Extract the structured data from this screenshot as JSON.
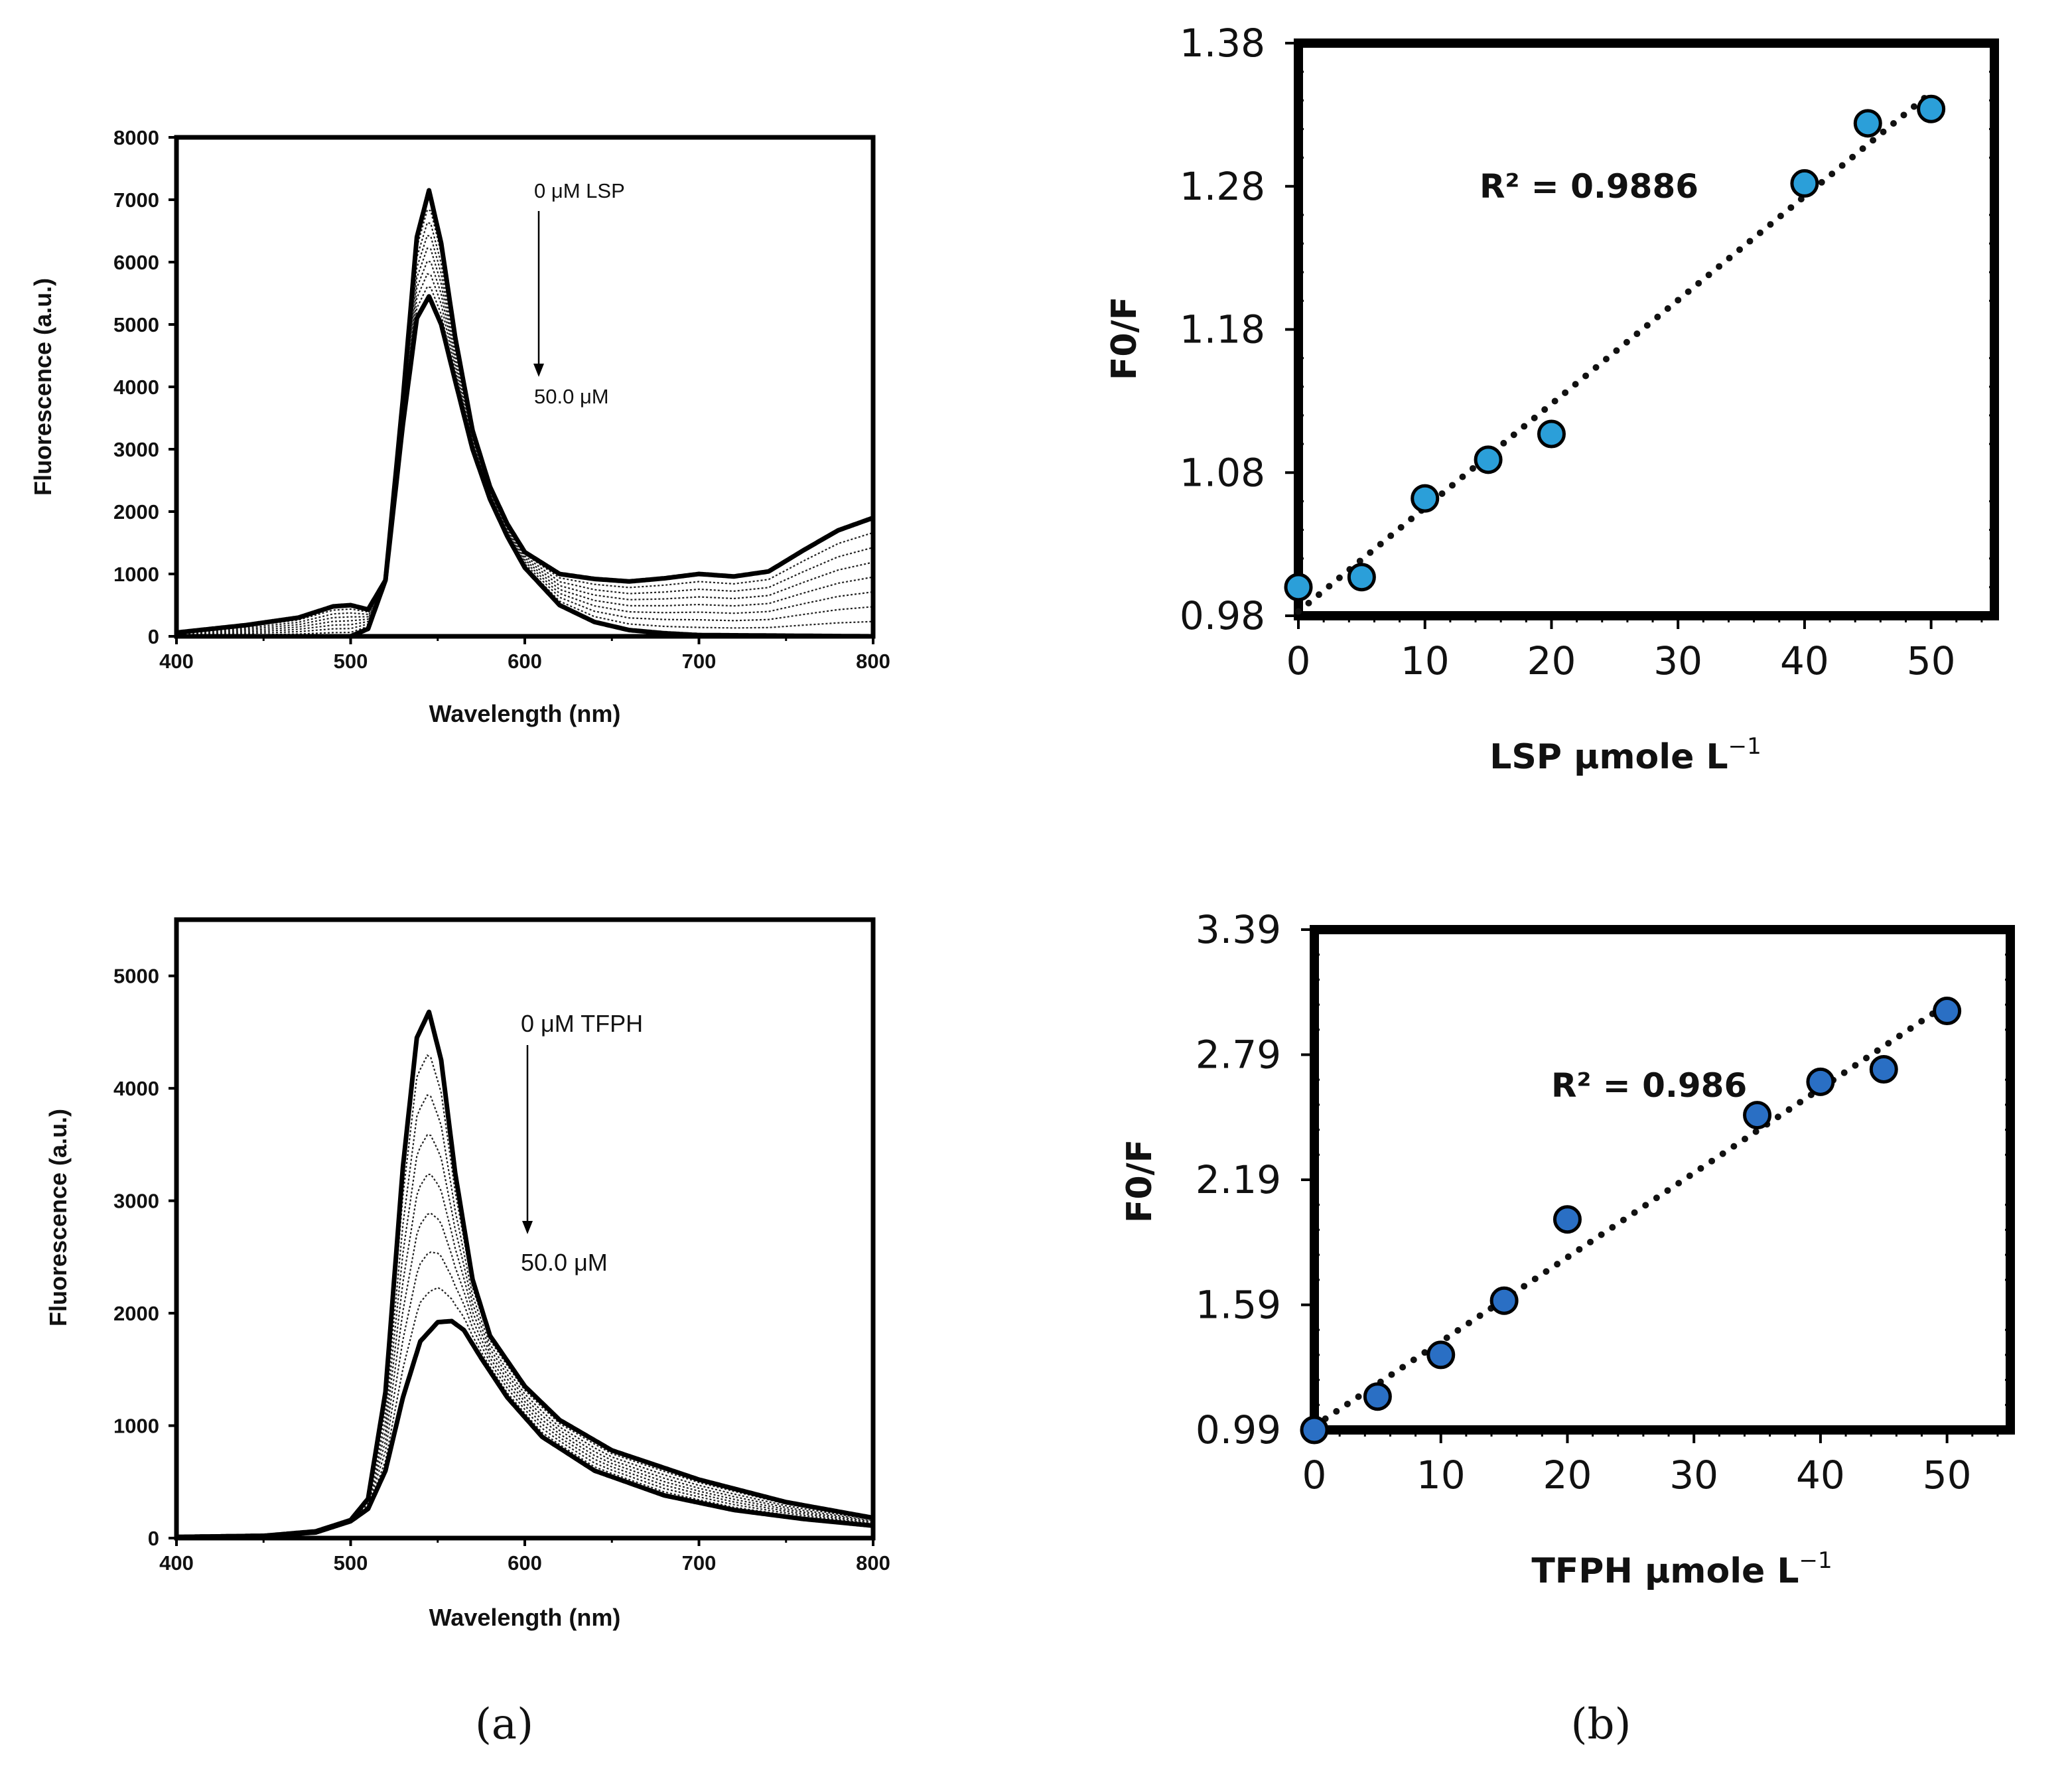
{
  "panel_labels": {
    "a": "(a)",
    "b": "(b)"
  },
  "chart_data": [
    {
      "id": "a-top",
      "type": "line",
      "xlabel": "Wavelength (nm)",
      "ylabel": "Fluorescence (a.u.)",
      "xlim": [
        400,
        800
      ],
      "ylim": [
        0,
        8000
      ],
      "xticks": [
        "400",
        "500",
        "600",
        "700",
        "800"
      ],
      "yticks": [
        "0",
        "1000",
        "2000",
        "3000",
        "4000",
        "5000",
        "6000",
        "7000",
        "8000"
      ],
      "annotation_top": "0 μM LSP",
      "annotation_bottom": "50.0 μM",
      "series": [
        {
          "name": "0 μM LSP",
          "peak": 7150,
          "x": [
            400,
            440,
            470,
            490,
            500,
            510,
            520,
            530,
            538,
            545,
            552,
            560,
            570,
            580,
            590,
            600,
            620,
            640,
            660,
            680,
            700,
            720,
            740,
            760,
            780,
            800
          ],
          "y": [
            60,
            180,
            300,
            480,
            500,
            430,
            900,
            3800,
            6400,
            7150,
            6300,
            4800,
            3300,
            2400,
            1800,
            1350,
            1000,
            920,
            880,
            930,
            1000,
            960,
            1040,
            1380,
            1700,
            1900
          ]
        },
        {
          "name": "50.0 μM",
          "peak": 5450,
          "x": [
            400,
            500,
            510,
            520,
            530,
            538,
            545,
            552,
            560,
            570,
            580,
            590,
            600,
            620,
            640,
            660,
            680,
            700,
            750,
            800
          ],
          "y": [
            0,
            0,
            120,
            900,
            3400,
            5100,
            5450,
            5000,
            4100,
            3000,
            2200,
            1600,
            1100,
            500,
            230,
            100,
            50,
            20,
            10,
            0
          ]
        }
      ]
    },
    {
      "id": "a-bottom",
      "type": "line",
      "xlabel": "Wavelength (nm)",
      "ylabel": "Fluorescence (a.u.)",
      "xlim": [
        400,
        800
      ],
      "ylim": [
        0,
        5500
      ],
      "xticks": [
        "400",
        "500",
        "600",
        "700",
        "800"
      ],
      "yticks": [
        "0",
        "1000",
        "2000",
        "3000",
        "4000",
        "5000"
      ],
      "annotation_top": "0 μM TFPH",
      "annotation_bottom": "50.0 μM",
      "series": [
        {
          "name": "0 μM TFPH",
          "peak": 4680,
          "x": [
            400,
            450,
            480,
            500,
            510,
            520,
            530,
            538,
            545,
            552,
            560,
            570,
            580,
            600,
            620,
            650,
            700,
            750,
            800
          ],
          "y": [
            10,
            20,
            60,
            160,
            350,
            1300,
            3300,
            4450,
            4680,
            4250,
            3250,
            2300,
            1800,
            1350,
            1050,
            780,
            520,
            320,
            180
          ]
        },
        {
          "name": "50.0 μM",
          "peak": 1930,
          "x": [
            400,
            450,
            480,
            500,
            510,
            520,
            530,
            540,
            550,
            558,
            565,
            575,
            590,
            610,
            640,
            680,
            720,
            760,
            800
          ],
          "y": [
            10,
            20,
            50,
            150,
            260,
            600,
            1250,
            1750,
            1920,
            1930,
            1850,
            1600,
            1250,
            900,
            600,
            380,
            250,
            170,
            110
          ]
        }
      ]
    },
    {
      "id": "b-top",
      "type": "scatter",
      "xlabel": "LSP μmole L",
      "xlabel_sup": "−1",
      "ylabel": "F0/F",
      "xlim": [
        0,
        55
      ],
      "ylim": [
        0.98,
        1.38
      ],
      "xticks": [
        "0",
        "10",
        "20",
        "30",
        "40",
        "50"
      ],
      "yticks": [
        "0.98",
        "1.08",
        "1.18",
        "1.28",
        "1.38"
      ],
      "trendline": "linear (dotted)",
      "r2_label": "R² = 0.9886",
      "marker_color": "#2b9fd9",
      "x": [
        0,
        5,
        10,
        15,
        20,
        40,
        45,
        50
      ],
      "y": [
        1.0,
        1.007,
        1.062,
        1.089,
        1.107,
        1.282,
        1.324,
        1.334
      ]
    },
    {
      "id": "b-bottom",
      "type": "scatter",
      "xlabel": "TFPH μmole L",
      "xlabel_sup": "−1",
      "ylabel": "F0/F",
      "xlim": [
        0,
        55
      ],
      "ylim": [
        0.99,
        3.39
      ],
      "xticks": [
        "0",
        "10",
        "20",
        "30",
        "40",
        "50"
      ],
      "yticks": [
        "0.99",
        "1.59",
        "2.19",
        "2.79",
        "3.39"
      ],
      "trendline": "linear (dotted)",
      "r2_label": "R² = 0.986",
      "marker_color": "#2a6fc4",
      "x": [
        0,
        5,
        10,
        15,
        20,
        35,
        40,
        45,
        50
      ],
      "y": [
        0.99,
        1.15,
        1.35,
        1.61,
        2.0,
        2.5,
        2.66,
        2.72,
        3.0
      ]
    }
  ]
}
